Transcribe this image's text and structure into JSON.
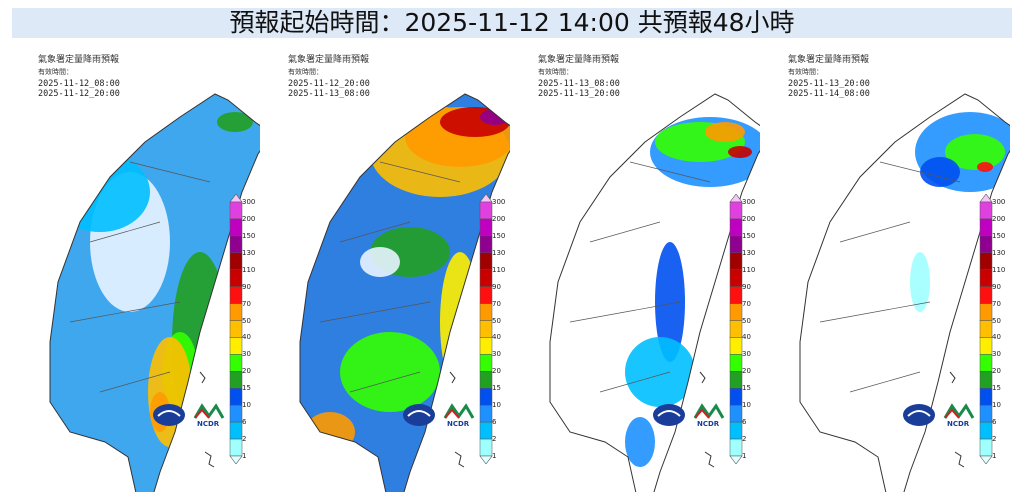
{
  "title": "預報起始時間：2025-11-12 14:00  共預報48小時",
  "panels": [
    {
      "heading": "氣象署定量降雨預報",
      "valid_label": "有效時間：",
      "start": "2025-11-12_08:00",
      "end": "2025-11-12_20:00",
      "rain": "light-south-east"
    },
    {
      "heading": "氣象署定量降雨預報",
      "valid_label": "有效時間：",
      "start": "2025-11-12_20:00",
      "end": "2025-11-13_08:00",
      "rain": "heavy-north"
    },
    {
      "heading": "氣象署定量降雨預報",
      "valid_label": "有效時間：",
      "start": "2025-11-13_08:00",
      "end": "2025-11-13_20:00",
      "rain": "north-focused"
    },
    {
      "heading": "氣象署定量降雨預報",
      "valid_label": "有效時間：",
      "start": "2025-11-13_20:00",
      "end": "2025-11-14_08:00",
      "rain": "northeast-only"
    }
  ],
  "legend": {
    "levels": [
      "300",
      "200",
      "150",
      "130",
      "110",
      "90",
      "70",
      "50",
      "40",
      "30",
      "20",
      "15",
      "10",
      "6",
      "2",
      "1"
    ],
    "colors": [
      "#e040e0",
      "#c000c0",
      "#900090",
      "#a00000",
      "#c80000",
      "#ff1010",
      "#ff9a00",
      "#ffbf00",
      "#ffee00",
      "#33ff00",
      "#22a022",
      "#0050f0",
      "#1e90ff",
      "#00bfff",
      "#a0ffff"
    ]
  },
  "logos": {
    "cwa": "CWA",
    "ncdr": "NCDR"
  }
}
